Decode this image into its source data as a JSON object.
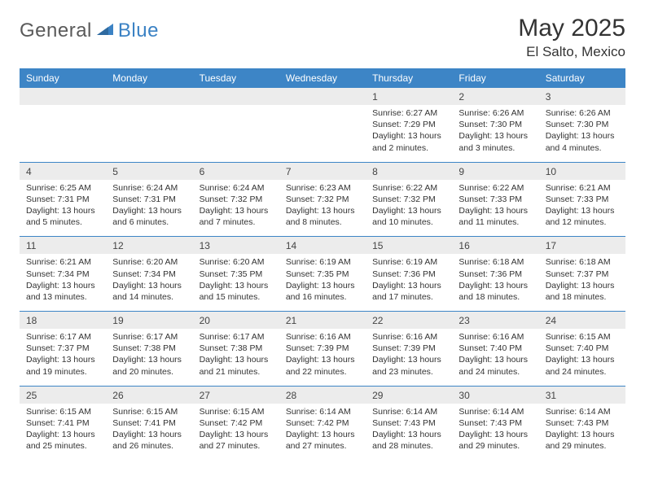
{
  "brand": {
    "part1": "General",
    "part2": "Blue"
  },
  "title": "May 2025",
  "location": "El Salto, Mexico",
  "colors": {
    "header_bg": "#3d85c6",
    "header_text": "#ffffff",
    "daynum_bg": "#ececec",
    "border": "#3d85c6",
    "body_text": "#333333",
    "logo_gray": "#5a5a5a",
    "logo_blue": "#3b82c4",
    "page_bg": "#ffffff"
  },
  "typography": {
    "title_fontsize": 30,
    "location_fontsize": 17,
    "dayhead_fontsize": 12,
    "daynum_fontsize": 12,
    "detail_fontsize": 10.5
  },
  "day_headers": [
    "Sunday",
    "Monday",
    "Tuesday",
    "Wednesday",
    "Thursday",
    "Friday",
    "Saturday"
  ],
  "weeks": [
    {
      "nums": [
        "",
        "",
        "",
        "",
        "1",
        "2",
        "3"
      ],
      "details": [
        "",
        "",
        "",
        "",
        "Sunrise: 6:27 AM\nSunset: 7:29 PM\nDaylight: 13 hours and 2 minutes.",
        "Sunrise: 6:26 AM\nSunset: 7:30 PM\nDaylight: 13 hours and 3 minutes.",
        "Sunrise: 6:26 AM\nSunset: 7:30 PM\nDaylight: 13 hours and 4 minutes."
      ]
    },
    {
      "nums": [
        "4",
        "5",
        "6",
        "7",
        "8",
        "9",
        "10"
      ],
      "details": [
        "Sunrise: 6:25 AM\nSunset: 7:31 PM\nDaylight: 13 hours and 5 minutes.",
        "Sunrise: 6:24 AM\nSunset: 7:31 PM\nDaylight: 13 hours and 6 minutes.",
        "Sunrise: 6:24 AM\nSunset: 7:32 PM\nDaylight: 13 hours and 7 minutes.",
        "Sunrise: 6:23 AM\nSunset: 7:32 PM\nDaylight: 13 hours and 8 minutes.",
        "Sunrise: 6:22 AM\nSunset: 7:32 PM\nDaylight: 13 hours and 10 minutes.",
        "Sunrise: 6:22 AM\nSunset: 7:33 PM\nDaylight: 13 hours and 11 minutes.",
        "Sunrise: 6:21 AM\nSunset: 7:33 PM\nDaylight: 13 hours and 12 minutes."
      ]
    },
    {
      "nums": [
        "11",
        "12",
        "13",
        "14",
        "15",
        "16",
        "17"
      ],
      "details": [
        "Sunrise: 6:21 AM\nSunset: 7:34 PM\nDaylight: 13 hours and 13 minutes.",
        "Sunrise: 6:20 AM\nSunset: 7:34 PM\nDaylight: 13 hours and 14 minutes.",
        "Sunrise: 6:20 AM\nSunset: 7:35 PM\nDaylight: 13 hours and 15 minutes.",
        "Sunrise: 6:19 AM\nSunset: 7:35 PM\nDaylight: 13 hours and 16 minutes.",
        "Sunrise: 6:19 AM\nSunset: 7:36 PM\nDaylight: 13 hours and 17 minutes.",
        "Sunrise: 6:18 AM\nSunset: 7:36 PM\nDaylight: 13 hours and 18 minutes.",
        "Sunrise: 6:18 AM\nSunset: 7:37 PM\nDaylight: 13 hours and 18 minutes."
      ]
    },
    {
      "nums": [
        "18",
        "19",
        "20",
        "21",
        "22",
        "23",
        "24"
      ],
      "details": [
        "Sunrise: 6:17 AM\nSunset: 7:37 PM\nDaylight: 13 hours and 19 minutes.",
        "Sunrise: 6:17 AM\nSunset: 7:38 PM\nDaylight: 13 hours and 20 minutes.",
        "Sunrise: 6:17 AM\nSunset: 7:38 PM\nDaylight: 13 hours and 21 minutes.",
        "Sunrise: 6:16 AM\nSunset: 7:39 PM\nDaylight: 13 hours and 22 minutes.",
        "Sunrise: 6:16 AM\nSunset: 7:39 PM\nDaylight: 13 hours and 23 minutes.",
        "Sunrise: 6:16 AM\nSunset: 7:40 PM\nDaylight: 13 hours and 24 minutes.",
        "Sunrise: 6:15 AM\nSunset: 7:40 PM\nDaylight: 13 hours and 24 minutes."
      ]
    },
    {
      "nums": [
        "25",
        "26",
        "27",
        "28",
        "29",
        "30",
        "31"
      ],
      "details": [
        "Sunrise: 6:15 AM\nSunset: 7:41 PM\nDaylight: 13 hours and 25 minutes.",
        "Sunrise: 6:15 AM\nSunset: 7:41 PM\nDaylight: 13 hours and 26 minutes.",
        "Sunrise: 6:15 AM\nSunset: 7:42 PM\nDaylight: 13 hours and 27 minutes.",
        "Sunrise: 6:14 AM\nSunset: 7:42 PM\nDaylight: 13 hours and 27 minutes.",
        "Sunrise: 6:14 AM\nSunset: 7:43 PM\nDaylight: 13 hours and 28 minutes.",
        "Sunrise: 6:14 AM\nSunset: 7:43 PM\nDaylight: 13 hours and 29 minutes.",
        "Sunrise: 6:14 AM\nSunset: 7:43 PM\nDaylight: 13 hours and 29 minutes."
      ]
    }
  ]
}
